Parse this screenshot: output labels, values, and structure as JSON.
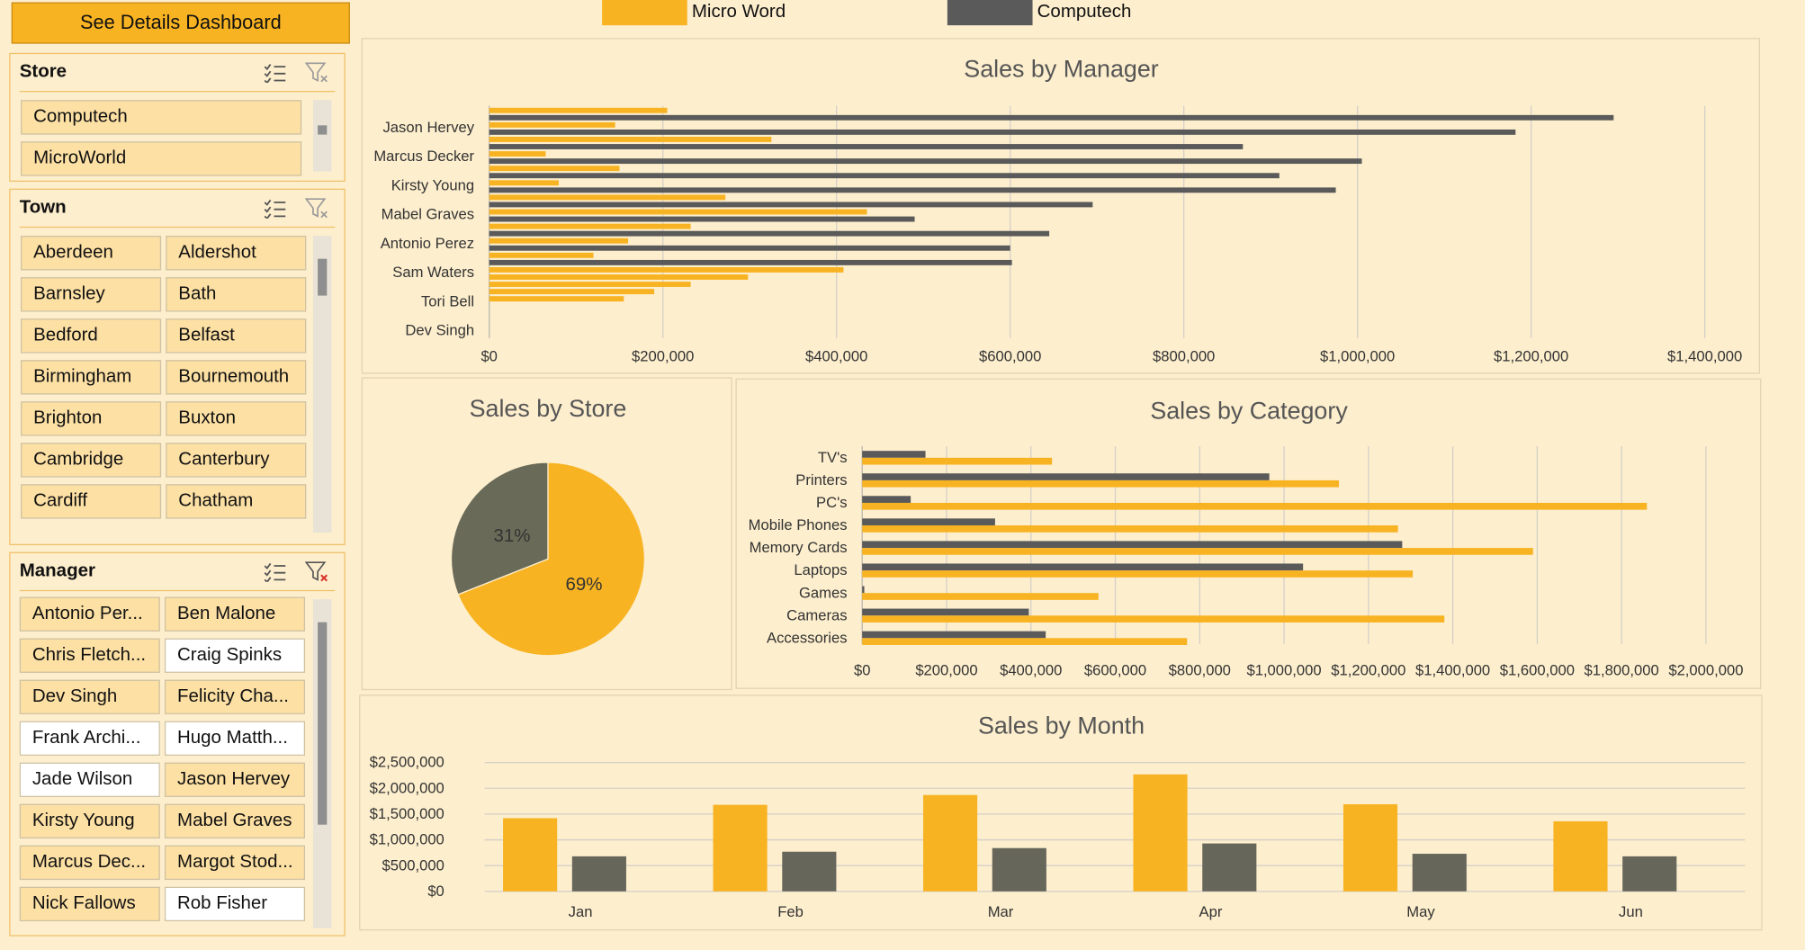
{
  "details_button": "See Details Dashboard",
  "legend": [
    {
      "label": "Micro Word",
      "color": "#f8b322"
    },
    {
      "label": "Computech",
      "color": "#5a5a5a"
    }
  ],
  "slicers": {
    "store": {
      "title": "Store",
      "items": [
        {
          "label": "Computech",
          "selected": true
        },
        {
          "label": "MicroWorld",
          "selected": true
        }
      ]
    },
    "town": {
      "title": "Town",
      "items": [
        {
          "label": "Aberdeen",
          "selected": true
        },
        {
          "label": "Aldershot",
          "selected": true
        },
        {
          "label": "Barnsley",
          "selected": true
        },
        {
          "label": "Bath",
          "selected": true
        },
        {
          "label": "Bedford",
          "selected": true
        },
        {
          "label": "Belfast",
          "selected": true
        },
        {
          "label": "Birmingham",
          "selected": true
        },
        {
          "label": "Bournemouth",
          "selected": true
        },
        {
          "label": "Brighton",
          "selected": true
        },
        {
          "label": "Buxton",
          "selected": true
        },
        {
          "label": "Cambridge",
          "selected": true
        },
        {
          "label": "Canterbury",
          "selected": true
        },
        {
          "label": "Cardiff",
          "selected": true
        },
        {
          "label": "Chatham",
          "selected": true
        }
      ]
    },
    "manager": {
      "title": "Manager",
      "items": [
        {
          "label": "Antonio Per...",
          "selected": true
        },
        {
          "label": "Ben Malone",
          "selected": true
        },
        {
          "label": "Chris Fletch...",
          "selected": true
        },
        {
          "label": "Craig Spinks",
          "selected": false
        },
        {
          "label": "Dev Singh",
          "selected": true
        },
        {
          "label": "Felicity Cha...",
          "selected": true
        },
        {
          "label": "Frank Archi...",
          "selected": false
        },
        {
          "label": "Hugo Matth...",
          "selected": false
        },
        {
          "label": "Jade Wilson",
          "selected": false
        },
        {
          "label": "Jason Hervey",
          "selected": true
        },
        {
          "label": "Kirsty Young",
          "selected": true
        },
        {
          "label": "Mabel Graves",
          "selected": true
        },
        {
          "label": "Marcus Dec...",
          "selected": true
        },
        {
          "label": "Margot Stod...",
          "selected": true
        },
        {
          "label": "Nick Fallows",
          "selected": true
        },
        {
          "label": "Rob Fisher",
          "selected": false
        }
      ]
    }
  },
  "chart_data": [
    {
      "type": "bar",
      "title": "Sales by Manager",
      "orientation": "horizontal",
      "xlim": [
        0,
        1400000
      ],
      "ticks": [
        "$0",
        "$200,000",
        "$400,000",
        "$600,000",
        "$800,000",
        "$1,000,000",
        "$1,200,000",
        "$1,400,000"
      ],
      "categories": [
        "Jason Hervey",
        "Marcus Decker",
        "Kirsty Young",
        "Mabel Graves",
        "Antonio Perez",
        "Sam Waters",
        "Tori Bell",
        "Dev Singh"
      ],
      "bars": [
        {
          "series": "Micro Word",
          "value": 205000
        },
        {
          "series": "Computech",
          "value": 1295000
        },
        {
          "series": "Micro Word",
          "value": 145000
        },
        {
          "series": "Computech",
          "value": 1182000
        },
        {
          "series": "Micro Word",
          "value": 325000
        },
        {
          "series": "Computech",
          "value": 868000
        },
        {
          "series": "Micro Word",
          "value": 65000
        },
        {
          "series": "Computech",
          "value": 1005000
        },
        {
          "series": "Micro Word",
          "value": 150000
        },
        {
          "series": "Computech",
          "value": 910000
        },
        {
          "series": "Micro Word",
          "value": 80000
        },
        {
          "series": "Computech",
          "value": 975000
        },
        {
          "series": "Micro Word",
          "value": 272000
        },
        {
          "series": "Computech",
          "value": 695000
        },
        {
          "series": "Micro Word",
          "value": 435000
        },
        {
          "series": "Computech",
          "value": 490000
        },
        {
          "series": "Micro Word",
          "value": 232000
        },
        {
          "series": "Computech",
          "value": 645000
        },
        {
          "series": "Micro Word",
          "value": 160000
        },
        {
          "series": "Computech",
          "value": 600000
        },
        {
          "series": "Micro Word",
          "value": 120000
        },
        {
          "series": "Computech",
          "value": 602000
        },
        {
          "series": "Micro Word",
          "value": 408000
        },
        {
          "series": "Micro Word",
          "value": 298000
        },
        {
          "series": "Micro Word",
          "value": 232000
        },
        {
          "series": "Micro Word",
          "value": 190000
        },
        {
          "series": "Micro Word",
          "value": 155000
        }
      ]
    },
    {
      "type": "pie",
      "title": "Sales by Store",
      "slices": [
        {
          "label": "Micro Word",
          "value": 69,
          "text": "69%"
        },
        {
          "label": "Computech",
          "value": 31,
          "text": "31%"
        }
      ]
    },
    {
      "type": "bar",
      "title": "Sales by Category",
      "orientation": "horizontal",
      "xlim": [
        0,
        2000000
      ],
      "ticks": [
        "$0",
        "$200,000",
        "$400,000",
        "$600,000",
        "$800,000",
        "$1,000,000",
        "$1,200,000",
        "$1,400,000",
        "$1,600,000",
        "$1,800,000",
        "$2,000,000"
      ],
      "categories": [
        "TV's",
        "Printers",
        "PC's",
        "Mobile Phones",
        "Memory Cards",
        "Laptops",
        "Games",
        "Cameras",
        "Accessories"
      ],
      "series": [
        {
          "name": "Computech",
          "values": [
            150000,
            965000,
            115000,
            315000,
            1280000,
            1045000,
            5000,
            395000,
            435000
          ]
        },
        {
          "name": "Micro Word",
          "values": [
            450000,
            1130000,
            1860000,
            1270000,
            1590000,
            1305000,
            560000,
            1380000,
            770000
          ]
        }
      ]
    },
    {
      "type": "bar",
      "title": "Sales by Month",
      "ylim": [
        0,
        2500000
      ],
      "ticks": [
        "$0",
        "$500,000",
        "$1,000,000",
        "$1,500,000",
        "$2,000,000",
        "$2,500,000"
      ],
      "categories": [
        "Jan",
        "Feb",
        "Mar",
        "Apr",
        "May",
        "Jun"
      ],
      "series": [
        {
          "name": "Micro Word",
          "values": [
            1420000,
            1680000,
            1870000,
            2270000,
            1690000,
            1360000
          ]
        },
        {
          "name": "Computech",
          "values": [
            680000,
            770000,
            840000,
            930000,
            730000,
            680000
          ]
        }
      ]
    }
  ]
}
